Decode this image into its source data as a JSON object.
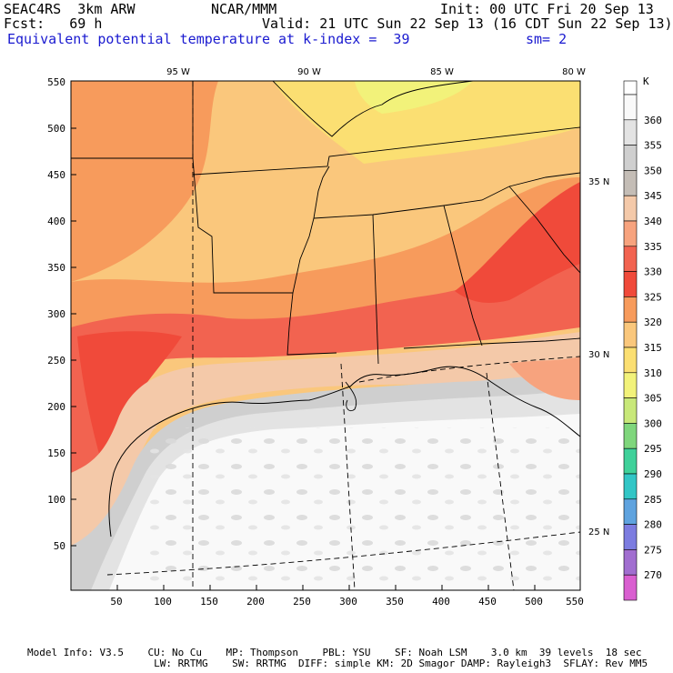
{
  "header": {
    "model": "SEAC4RS  3km ARW",
    "center": "NCAR/MMM",
    "init": "Init: 00 UTC Fri 20 Sep 13",
    "fcst_label": "Fcst:   69 h",
    "valid": "Valid: 21 UTC Sun 22 Sep 13 (16 CDT Sun 22 Sep 13)",
    "field": "Equivalent potential temperature",
    "level": "at k-index =  39",
    "smoothing": "sm= 2"
  },
  "axes": {
    "x_ticks": [
      "50",
      "100",
      "150",
      "200",
      "250",
      "300",
      "350",
      "400",
      "450",
      "500",
      "550"
    ],
    "y_ticks": [
      "550",
      "500",
      "450",
      "400",
      "350",
      "300",
      "250",
      "200",
      "150",
      "100",
      "50"
    ],
    "lon_labels": [
      "95 W",
      "90 W",
      "85 W",
      "80 W"
    ],
    "lat_labels": [
      "35 N",
      "30 N",
      "25 N"
    ]
  },
  "colorbar": {
    "unit": "K",
    "levels": [
      {
        "value": "360",
        "color": "#f9f9f9"
      },
      {
        "value": "355",
        "color": "#e3e3e3"
      },
      {
        "value": "350",
        "color": "#cfcfcf"
      },
      {
        "value": "345",
        "color": "#c4bdb6"
      },
      {
        "value": "340",
        "color": "#f4c9a9"
      },
      {
        "value": "335",
        "color": "#f7a37e"
      },
      {
        "value": "330",
        "color": "#f26350"
      },
      {
        "value": "325",
        "color": "#f04a3a"
      },
      {
        "value": "320",
        "color": "#f79b5c"
      },
      {
        "value": "315",
        "color": "#fac77c"
      },
      {
        "value": "310",
        "color": "#fbdf72"
      },
      {
        "value": "305",
        "color": "#f2f27a"
      },
      {
        "value": "300",
        "color": "#c8e879"
      },
      {
        "value": "295",
        "color": "#7fd67c"
      },
      {
        "value": "290",
        "color": "#3fd19a"
      },
      {
        "value": "285",
        "color": "#32c6c6"
      },
      {
        "value": "280",
        "color": "#5fa3df"
      },
      {
        "value": "275",
        "color": "#7c7ce0"
      },
      {
        "value": "270",
        "color": "#a16ed0"
      },
      {
        "value": "",
        "color": "#d95fd0"
      }
    ]
  },
  "footer": {
    "line1": "Model Info: V3.5    CU: No Cu    MP: Thompson    PBL: YSU    SF: Noah LSM    3.0 km  39 levels  18 sec",
    "line2": "                     LW: RRTMG    SW: RRTMG  DIFF: simple KM: 2D Smagor DAMP: Rayleigh3  SFLAY: Rev MM5"
  }
}
